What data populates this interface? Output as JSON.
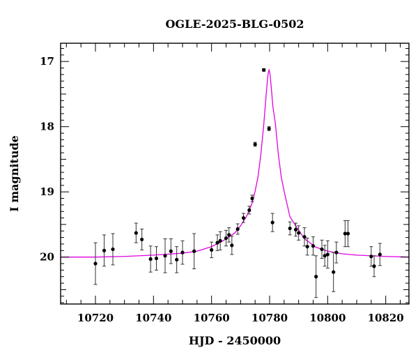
{
  "chart_data": {
    "type": "scatter",
    "title": "OGLE-2025-BLG-0502",
    "xlabel": "HJD - 2450000",
    "ylabel": "I magnitude",
    "xlim": [
      10708,
      10828
    ],
    "ylim": [
      20.72,
      16.72
    ],
    "y_inverted": true,
    "xticks": [
      10720,
      10740,
      10760,
      10780,
      10800,
      10820
    ],
    "yticks": [
      17,
      18,
      19,
      20
    ],
    "grid": false,
    "colors": {
      "points": "#000000",
      "errorbars": "#333333",
      "model": "#e000e0",
      "axes": "#000000"
    },
    "series": [
      {
        "kind": "points",
        "x": [
          10720,
          10723,
          10726,
          10734,
          10736,
          10739,
          10741,
          10744,
          10746,
          10748,
          10750,
          10754,
          10760,
          10762,
          10763,
          10765,
          10766,
          10767,
          10769,
          10771,
          10773,
          10774,
          10775,
          10778,
          10779.8,
          10781,
          10787,
          10789,
          10790,
          10792,
          10793,
          10795,
          10796,
          10798,
          10799,
          10800,
          10802,
          10803,
          10806,
          10807,
          10815,
          10816,
          10818
        ],
        "y": [
          20.1,
          19.9,
          19.88,
          19.63,
          19.73,
          20.03,
          20.02,
          19.98,
          19.91,
          20.04,
          19.93,
          19.91,
          19.89,
          19.78,
          19.75,
          19.71,
          19.66,
          19.82,
          19.57,
          19.4,
          19.28,
          19.1,
          18.27,
          17.13,
          18.03,
          19.47,
          19.56,
          19.58,
          19.63,
          19.69,
          19.84,
          19.83,
          20.3,
          19.88,
          19.98,
          19.96,
          20.23,
          19.93,
          19.64,
          19.64,
          19.99,
          20.14,
          19.96
        ],
        "err": [
          0.32,
          0.24,
          0.24,
          0.15,
          0.16,
          0.2,
          0.18,
          0.26,
          0.19,
          0.2,
          0.18,
          0.27,
          0.12,
          0.12,
          0.14,
          0.12,
          0.11,
          0.14,
          0.08,
          0.07,
          0.06,
          0.05,
          0.03,
          0.02,
          0.03,
          0.14,
          0.1,
          0.1,
          0.11,
          0.14,
          0.13,
          0.14,
          0.32,
          0.14,
          0.16,
          0.21,
          0.3,
          0.16,
          0.2,
          0.2,
          0.15,
          0.16,
          0.17
        ]
      },
      {
        "kind": "model",
        "x": [
          10708,
          10720,
          10730,
          10740,
          10750,
          10755,
          10760,
          10764,
          10768,
          10770,
          10772,
          10774,
          10775,
          10776,
          10777,
          10778,
          10778.5,
          10779,
          10779.5,
          10779.8,
          10780.1,
          10780.6,
          10781.1,
          10782,
          10783,
          10784,
          10785,
          10787,
          10789,
          10792,
          10796,
          10800,
          10805,
          10810,
          10820,
          10828
        ],
        "y": [
          20.0,
          20.0,
          19.99,
          19.97,
          19.94,
          19.91,
          19.84,
          19.75,
          19.63,
          19.52,
          19.38,
          19.17,
          18.99,
          18.77,
          18.42,
          17.96,
          17.68,
          17.41,
          17.18,
          17.13,
          17.18,
          17.41,
          17.68,
          17.96,
          18.42,
          18.77,
          18.99,
          19.38,
          19.52,
          19.72,
          19.85,
          19.91,
          19.95,
          19.97,
          19.99,
          20.0
        ]
      }
    ]
  }
}
